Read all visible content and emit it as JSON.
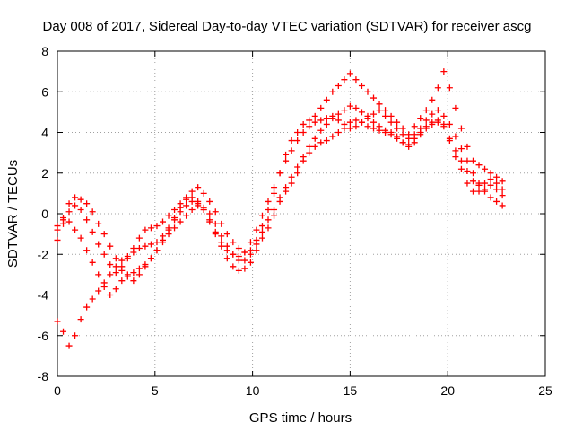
{
  "chart_data": {
    "type": "scatter",
    "title": "Day 008 of 2017, Sidereal Day-to-day VTEC variation (SDTVAR) for receiver ascg",
    "xlabel": "GPS time / hours",
    "ylabel": "SDTVAR / TECUs",
    "xlim": [
      0,
      25
    ],
    "ylim": [
      -8,
      8
    ],
    "x_ticks": [
      0,
      5,
      10,
      15,
      20,
      25
    ],
    "y_ticks": [
      -8,
      -6,
      -4,
      -2,
      0,
      2,
      4,
      6,
      8
    ],
    "grid": true,
    "legend": "none",
    "marker": "+",
    "color": "#ff0000",
    "series": [
      {
        "x": [
          0.0,
          0.3,
          0.6,
          0.9,
          1.2,
          1.5,
          1.8,
          2.1,
          2.4,
          2.7,
          3.0,
          3.3,
          3.6,
          3.9,
          4.2,
          4.5,
          4.8,
          5.1,
          5.4,
          5.7,
          6.0,
          6.3,
          6.6,
          6.9,
          7.2,
          7.5,
          7.8,
          8.1,
          8.4,
          8.7,
          9.0,
          9.3,
          9.6,
          9.9,
          10.2,
          10.5,
          10.8,
          11.1,
          11.4,
          11.7,
          12.0,
          12.3,
          12.6,
          12.9,
          13.2,
          13.5,
          13.8,
          14.1,
          14.4,
          14.7,
          15.0,
          15.3,
          15.6,
          15.9,
          16.2,
          16.5,
          16.8,
          17.1,
          17.4,
          17.7,
          18.0,
          18.3,
          18.6,
          18.9,
          19.2,
          19.5,
          19.8,
          20.1,
          20.4,
          20.7,
          21.0,
          21.3,
          21.6,
          21.9,
          22.2,
          22.5,
          22.8
        ],
        "y": [
          -1.3,
          -0.2,
          0.5,
          0.8,
          0.7,
          0.5,
          0.1,
          -0.5,
          -1.0,
          -1.6,
          -2.2,
          -2.8,
          -3.0,
          -3.3,
          -3.0,
          -2.6,
          -2.2,
          -1.8,
          -1.3,
          -0.8,
          -0.3,
          0.1,
          0.4,
          0.6,
          0.5,
          0.2,
          -0.4,
          -1.0,
          -1.6,
          -2.2,
          -2.6,
          -2.8,
          -2.7,
          -2.4,
          -1.8,
          -1.2,
          -0.7,
          -0.1,
          0.6,
          1.1,
          1.5,
          2.0,
          2.6,
          3.0,
          3.3,
          3.5,
          3.6,
          3.8,
          4.0,
          4.2,
          4.5,
          4.6,
          4.5,
          4.3,
          4.2,
          4.1,
          4.0,
          4.0,
          3.8,
          3.5,
          3.3,
          3.5,
          3.9,
          4.2,
          4.4,
          4.5,
          4.3,
          3.6,
          2.8,
          2.2,
          1.5,
          1.1,
          1.1,
          1.2,
          1.4,
          1.2,
          0.9
        ]
      },
      {
        "x": [
          0.0,
          0.3,
          0.6,
          0.9,
          1.2,
          1.5,
          1.8,
          2.1,
          2.4,
          2.7,
          3.0,
          3.3,
          3.6,
          3.9,
          4.2,
          4.5,
          4.8,
          5.1,
          5.4,
          5.7,
          6.0,
          6.3,
          6.6,
          6.9,
          7.2,
          7.5,
          7.8,
          8.1,
          8.4,
          8.7,
          9.0,
          9.3,
          9.6,
          9.9,
          10.2,
          10.5,
          10.8,
          11.1,
          11.4,
          11.7,
          12.0,
          12.3,
          12.6,
          12.9,
          13.2,
          13.5,
          13.8,
          14.1,
          14.4,
          14.7,
          15.0,
          15.3,
          15.6,
          15.9,
          16.2,
          16.5,
          16.8,
          17.1,
          17.4,
          17.7,
          18.0,
          18.3,
          18.6,
          18.9,
          19.2,
          19.5,
          19.8,
          20.1,
          20.4,
          20.7,
          21.0,
          21.3,
          21.6,
          21.9,
          22.2,
          22.5,
          22.8
        ],
        "y": [
          -0.8,
          -0.5,
          -0.4,
          -0.8,
          -1.2,
          -1.8,
          -2.4,
          -3.0,
          -3.6,
          -4.0,
          -3.7,
          -3.3,
          -3.1,
          -2.9,
          -2.7,
          -2.5,
          -2.2,
          -1.8,
          -1.4,
          -1.0,
          -0.7,
          -0.4,
          -0.1,
          0.2,
          0.4,
          0.3,
          0.0,
          -0.5,
          -1.1,
          -1.6,
          -2.0,
          -2.3,
          -2.3,
          -2.0,
          -1.5,
          -0.9,
          -0.3,
          0.2,
          0.8,
          1.3,
          1.8,
          2.3,
          2.8,
          3.3,
          3.7,
          4.1,
          4.4,
          4.7,
          4.9,
          5.1,
          5.3,
          5.2,
          5.0,
          4.8,
          4.5,
          4.3,
          4.1,
          3.9,
          3.7,
          3.5,
          3.4,
          3.7,
          4.0,
          4.3,
          4.5,
          4.6,
          4.4,
          3.7,
          3.1,
          2.6,
          2.1,
          1.6,
          1.4,
          1.5,
          1.7,
          1.5,
          1.2
        ]
      },
      {
        "x": [
          0.0,
          0.3,
          0.6,
          0.9,
          1.2,
          1.5,
          1.8,
          2.1,
          2.4,
          2.7,
          3.0,
          3.3,
          3.6,
          3.9,
          4.2,
          4.5,
          4.8,
          5.1,
          5.4,
          5.7,
          6.0,
          6.3,
          6.6,
          6.9,
          7.2,
          7.5,
          7.8,
          8.1,
          8.4,
          8.7,
          9.0,
          9.3,
          9.6,
          9.9,
          10.2,
          10.5,
          10.8,
          11.1,
          11.4,
          11.7,
          12.0,
          12.3,
          12.6,
          12.9,
          13.2,
          13.5,
          13.8,
          14.1,
          14.4,
          14.7,
          15.0,
          15.3,
          15.6,
          15.9,
          16.2,
          16.5,
          16.8,
          17.1,
          17.4,
          17.7,
          18.0,
          18.3,
          18.6,
          18.9,
          19.2,
          19.5,
          19.8,
          20.1,
          20.4,
          20.7,
          21.0,
          21.3,
          21.6,
          21.9,
          22.2,
          22.5,
          22.8
        ],
        "y": [
          -5.3,
          -5.8,
          -6.5,
          -6.0,
          -5.2,
          -4.6,
          -4.2,
          -3.8,
          -3.4,
          -3.0,
          -2.6,
          -2.3,
          -2.1,
          -1.9,
          -1.7,
          -1.6,
          -1.5,
          -1.4,
          -1.1,
          -0.7,
          -0.2,
          0.3,
          0.8,
          1.1,
          1.3,
          1.0,
          0.6,
          0.1,
          -0.5,
          -1.0,
          -1.4,
          -1.7,
          -1.9,
          -1.8,
          -1.3,
          -0.6,
          0.2,
          1.0,
          2.0,
          2.9,
          3.6,
          4.0,
          4.4,
          4.6,
          4.8,
          5.2,
          5.6,
          6.0,
          6.3,
          6.6,
          6.9,
          6.6,
          6.3,
          6.0,
          5.7,
          5.4,
          5.1,
          4.8,
          4.5,
          4.2,
          3.9,
          4.3,
          4.7,
          5.1,
          5.6,
          6.2,
          7.0,
          6.2,
          5.2,
          4.2,
          3.3,
          2.6,
          2.4,
          2.2,
          2.0,
          1.8,
          1.6
        ]
      },
      {
        "x": [
          0.0,
          0.3,
          0.6,
          0.9,
          1.2,
          1.5,
          1.8,
          2.1,
          2.4,
          2.7,
          3.0,
          3.3,
          3.6,
          3.9,
          4.2,
          4.5,
          4.8,
          5.1,
          5.4,
          5.7,
          6.0,
          6.3,
          6.6,
          6.9,
          7.2,
          7.5,
          7.8,
          8.1,
          8.4,
          8.7,
          9.0,
          9.3,
          9.6,
          9.9,
          10.2,
          10.5,
          10.8,
          11.1,
          11.4,
          11.7,
          12.0,
          12.3,
          12.6,
          12.9,
          13.2,
          13.5,
          13.8,
          14.1,
          14.4,
          14.7,
          15.0,
          15.3,
          15.6,
          15.9,
          16.2,
          16.5,
          16.8,
          17.1,
          17.4,
          17.7,
          18.0,
          18.3,
          18.6,
          18.9,
          19.2,
          19.5,
          19.8,
          20.1,
          20.4,
          20.7,
          21.0,
          21.3,
          21.6,
          21.9,
          22.2,
          22.5,
          22.8
        ],
        "y": [
          -0.6,
          -0.3,
          0.1,
          0.4,
          0.2,
          -0.3,
          -0.9,
          -1.5,
          -2.0,
          -2.5,
          -2.9,
          -2.6,
          -2.2,
          -1.7,
          -1.2,
          -0.8,
          -0.7,
          -0.6,
          -0.4,
          -0.1,
          0.2,
          0.5,
          0.7,
          0.8,
          0.6,
          0.2,
          -0.3,
          -0.9,
          -1.4,
          -1.8,
          -2.0,
          -2.1,
          -1.9,
          -1.4,
          -0.8,
          -0.1,
          0.6,
          1.3,
          2.0,
          2.6,
          3.1,
          3.6,
          4.0,
          4.3,
          4.5,
          4.6,
          4.7,
          4.8,
          4.6,
          4.4,
          4.2,
          4.3,
          4.5,
          4.7,
          4.9,
          5.1,
          4.8,
          4.5,
          4.2,
          3.9,
          3.7,
          3.9,
          4.2,
          4.6,
          4.9,
          5.1,
          4.8,
          4.4,
          3.8,
          3.2,
          2.6,
          2.0,
          1.5,
          1.1,
          0.8,
          0.6,
          0.4
        ]
      }
    ]
  }
}
